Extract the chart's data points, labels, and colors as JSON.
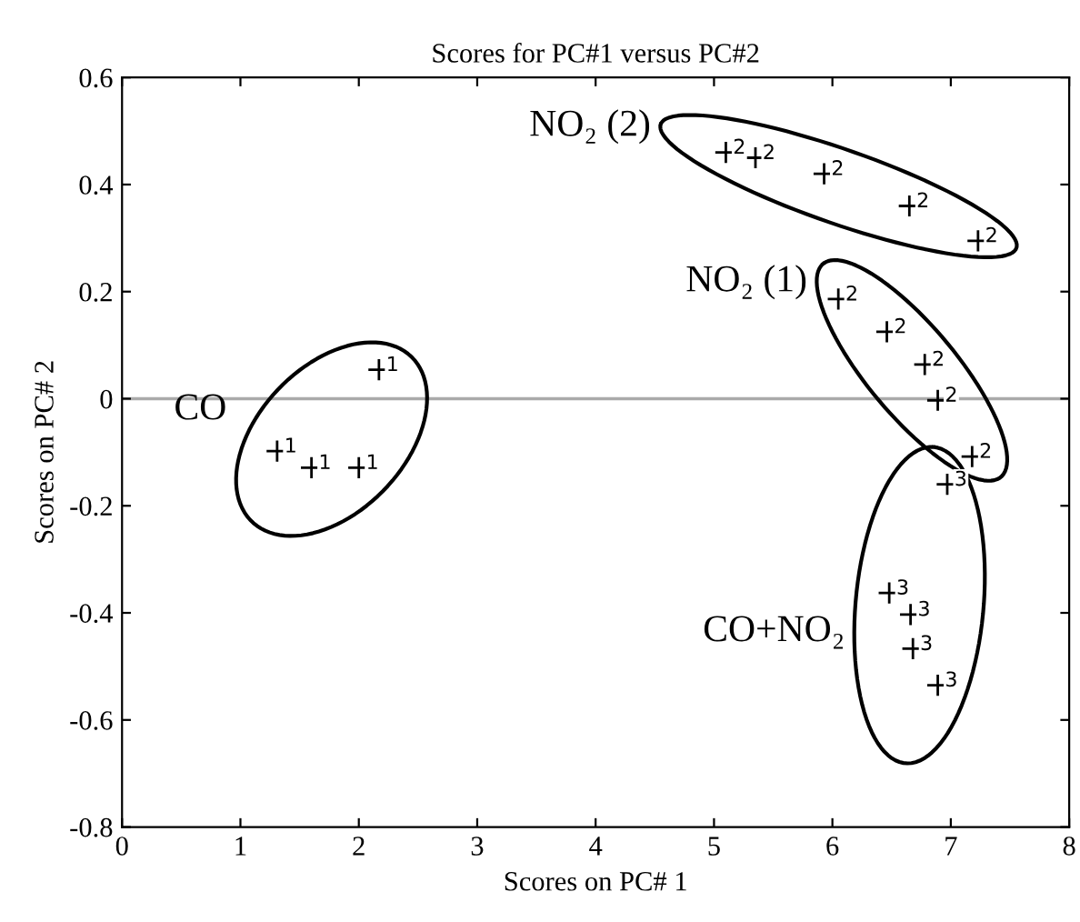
{
  "chart_data": {
    "type": "scatter",
    "title": "Scores for PC#1 versus PC#2",
    "xlabel": "Scores on PC# 1",
    "ylabel": "Scores on PC# 2",
    "xlim": [
      0,
      8
    ],
    "xticks": [
      0,
      1,
      2,
      3,
      4,
      5,
      6,
      7,
      8
    ],
    "ylim": [
      -0.8,
      0.6
    ],
    "yticks": [
      -0.8,
      -0.6,
      -0.4,
      -0.2,
      0,
      0.2,
      0.4,
      0.6
    ],
    "grid": false,
    "marker": "cross",
    "series": [
      {
        "name": "1",
        "color": "#000000",
        "x": [
          2.17,
          1.31,
          1.6,
          2.0
        ],
        "values": [
          0.054,
          -0.098,
          -0.129,
          -0.129
        ]
      },
      {
        "name": "2",
        "color": "#000000",
        "x": [
          5.1,
          5.35,
          5.93,
          6.65,
          7.23
        ],
        "values": [
          0.46,
          0.45,
          0.42,
          0.36,
          0.295
        ]
      },
      {
        "name": "2",
        "color": "#000000",
        "x": [
          6.05,
          6.46,
          6.78,
          6.89,
          7.18
        ],
        "values": [
          0.186,
          0.125,
          0.064,
          -0.003,
          -0.108
        ]
      },
      {
        "name": "3",
        "color": "#000000",
        "x": [
          6.97,
          6.48,
          6.66,
          6.68,
          6.89
        ],
        "values": [
          -0.16,
          -0.363,
          -0.403,
          -0.467,
          -0.535
        ]
      }
    ],
    "ref_lines": [
      {
        "axis": "y",
        "value": 0,
        "color": "#aaaaaa"
      }
    ],
    "annotations": [
      "CO",
      "NO₂ (2)",
      "NO₂ (1)",
      "CO+NO₂"
    ]
  }
}
